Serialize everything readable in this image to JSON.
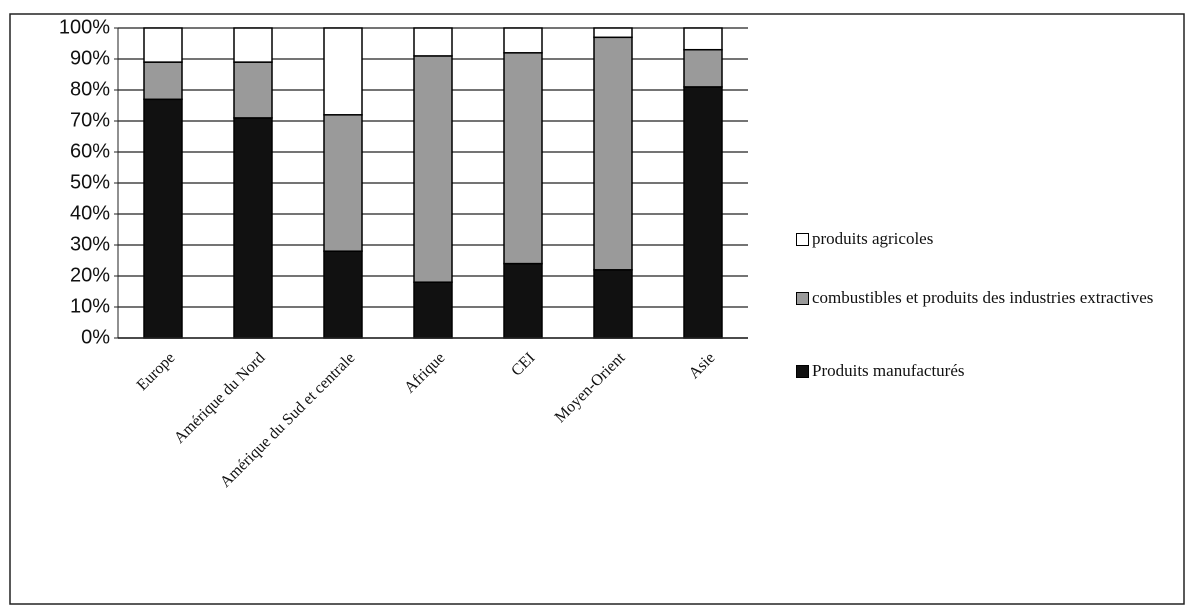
{
  "chart_data": {
    "type": "stacked_bar",
    "categories": [
      "Europe",
      "Amérique du Nord",
      "Amérique du Sud et centrale",
      "Afrique",
      "CEI",
      "Moyen-Orient",
      "Asie"
    ],
    "series": [
      {
        "name": "Produits manufacturés",
        "color": "#111111",
        "values": [
          77,
          71,
          28,
          18,
          24,
          22,
          81
        ]
      },
      {
        "name": "combustibles et produits des industries extractives",
        "color": "#9a9a9a",
        "values": [
          12,
          18,
          44,
          73,
          68,
          75,
          12
        ]
      },
      {
        "name": "produits agricoles",
        "color": "#ffffff",
        "values": [
          11,
          11,
          28,
          9,
          8,
          3,
          7
        ]
      }
    ],
    "ylim": [
      0,
      100
    ],
    "yticks": [
      {
        "value": 0,
        "label": "0%"
      },
      {
        "value": 10,
        "label": "10%"
      },
      {
        "value": 20,
        "label": "20%"
      },
      {
        "value": 30,
        "label": "30%"
      },
      {
        "value": 40,
        "label": "40%"
      },
      {
        "value": 50,
        "label": "50%"
      },
      {
        "value": 60,
        "label": "60%"
      },
      {
        "value": 70,
        "label": "70%"
      },
      {
        "value": 80,
        "label": "80%"
      },
      {
        "value": 90,
        "label": "90%"
      },
      {
        "value": 100,
        "label": "100%"
      }
    ],
    "grid": true,
    "legend": "right"
  }
}
